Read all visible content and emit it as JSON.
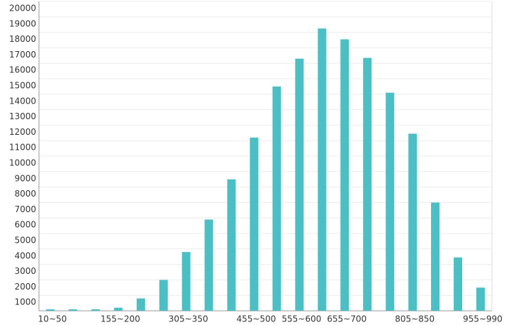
{
  "chart_data": {
    "type": "bar",
    "categories": [
      "10~50",
      null,
      null,
      "155~200",
      null,
      null,
      "305~350",
      null,
      null,
      "455~500",
      null,
      "555~600",
      null,
      "655~700",
      null,
      null,
      "805~850",
      null,
      null,
      "955~990"
    ],
    "values": [
      100,
      100,
      100,
      200,
      800,
      2000,
      3800,
      5900,
      8500,
      11200,
      14500,
      16300,
      18250,
      17550,
      16350,
      14100,
      11450,
      7000,
      3450,
      1500
    ],
    "color": "#4bbfc4",
    "ylim": [
      0,
      20000
    ],
    "yticks": [
      1000,
      2000,
      3000,
      4000,
      5000,
      6000,
      7000,
      8000,
      9000,
      10000,
      11000,
      12000,
      13000,
      14000,
      15000,
      16000,
      17000,
      18000,
      19000,
      20000
    ],
    "grid": true
  }
}
